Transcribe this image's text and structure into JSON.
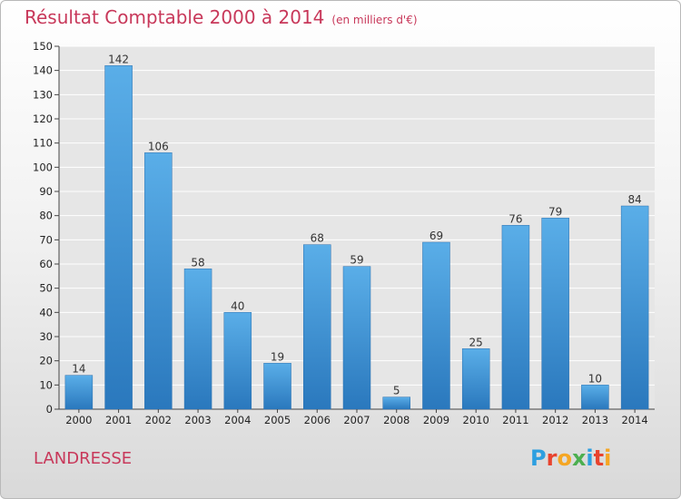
{
  "chart_data": {
    "type": "bar",
    "title": "Résultat Comptable 2000 à 2014",
    "subtitle": "(en milliers d'€)",
    "categories": [
      "2000",
      "2001",
      "2002",
      "2003",
      "2004",
      "2005",
      "2006",
      "2007",
      "2008",
      "2009",
      "2010",
      "2011",
      "2012",
      "2013",
      "2014"
    ],
    "values": [
      14,
      142,
      106,
      58,
      40,
      19,
      68,
      59,
      5,
      69,
      25,
      76,
      79,
      10,
      84
    ],
    "ylim": [
      0,
      150
    ],
    "yticks": [
      0,
      10,
      20,
      30,
      40,
      50,
      60,
      70,
      80,
      90,
      100,
      110,
      120,
      130,
      140,
      150
    ],
    "xlabel": "",
    "ylabel": "",
    "grid": true,
    "bar_color_top": "#5aaee8",
    "bar_color_bottom": "#2a78bd"
  },
  "footer": {
    "commune": "LANDRESSE",
    "logo_text": "Proxiti"
  },
  "colors": {
    "title": "#c8385a",
    "logo": [
      "#2d9fe0",
      "#e8432e",
      "#f5a623",
      "#4caf50",
      "#2d9fe0",
      "#e8432e",
      "#f5a623"
    ]
  }
}
